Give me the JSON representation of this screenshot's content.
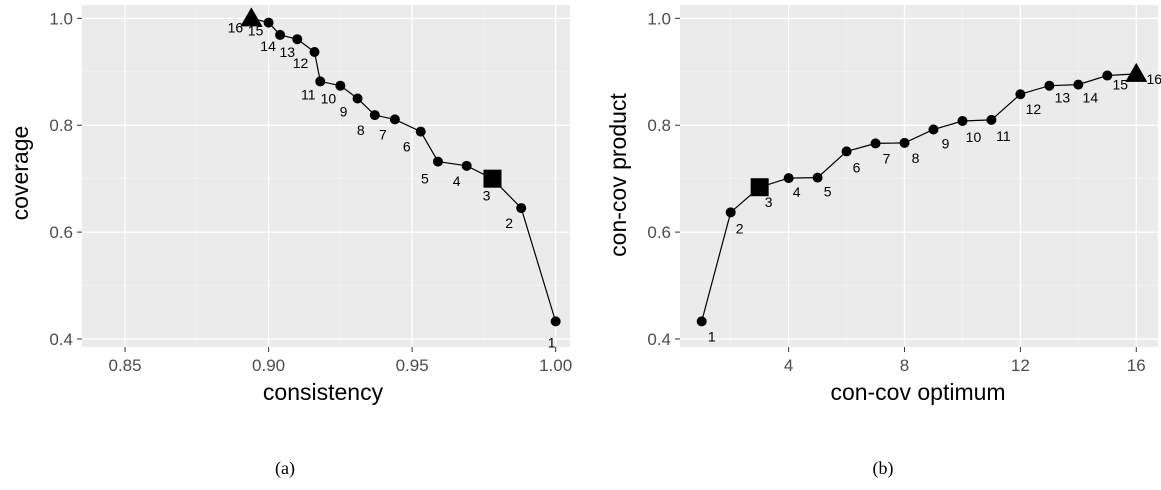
{
  "chart_data": [
    {
      "type": "line",
      "caption": "(a)",
      "xlabel": "consistency",
      "ylabel": "coverage",
      "xlim": [
        0.835,
        1.005
      ],
      "ylim": [
        0.385,
        1.025
      ],
      "xticks": [
        0.85,
        0.9,
        0.95,
        1.0
      ],
      "xtick_labels": [
        "0.85",
        "0.90",
        "0.95",
        "1.00"
      ],
      "yticks": [
        0.4,
        0.6,
        0.8,
        1.0
      ],
      "ytick_labels": [
        "0.4",
        "0.6",
        "0.8",
        "1.0"
      ],
      "grid": true,
      "points": [
        {
          "label": "1",
          "x": 1.0,
          "y": 0.433,
          "marker": "circle"
        },
        {
          "label": "2",
          "x": 0.988,
          "y": 0.645,
          "marker": "circle"
        },
        {
          "label": "3",
          "x": 0.978,
          "y": 0.7,
          "marker": "square"
        },
        {
          "label": "4",
          "x": 0.969,
          "y": 0.724,
          "marker": "circle"
        },
        {
          "label": "5",
          "x": 0.959,
          "y": 0.732,
          "marker": "circle"
        },
        {
          "label": "6",
          "x": 0.953,
          "y": 0.788,
          "marker": "circle"
        },
        {
          "label": "7",
          "x": 0.944,
          "y": 0.811,
          "marker": "circle"
        },
        {
          "label": "8",
          "x": 0.937,
          "y": 0.819,
          "marker": "circle"
        },
        {
          "label": "9",
          "x": 0.931,
          "y": 0.85,
          "marker": "circle"
        },
        {
          "label": "10",
          "x": 0.925,
          "y": 0.874,
          "marker": "circle"
        },
        {
          "label": "11",
          "x": 0.918,
          "y": 0.882,
          "marker": "circle"
        },
        {
          "label": "12",
          "x": 0.916,
          "y": 0.937,
          "marker": "circle"
        },
        {
          "label": "13",
          "x": 0.91,
          "y": 0.961,
          "marker": "circle"
        },
        {
          "label": "14",
          "x": 0.904,
          "y": 0.969,
          "marker": "circle"
        },
        {
          "label": "15",
          "x": 0.9,
          "y": 0.992,
          "marker": "circle"
        },
        {
          "label": "16",
          "x": 0.894,
          "y": 1.0,
          "marker": "triangle"
        }
      ]
    },
    {
      "type": "line",
      "caption": "(b)",
      "xlabel": "con-cov optimum",
      "ylabel": "con-cov product",
      "xlim": [
        0.25,
        16.75
      ],
      "ylim": [
        0.385,
        1.025
      ],
      "xticks": [
        4,
        8,
        12,
        16
      ],
      "xtick_labels": [
        "4",
        "8",
        "12",
        "16"
      ],
      "yticks": [
        0.4,
        0.6,
        0.8,
        1.0
      ],
      "ytick_labels": [
        "0.4",
        "0.6",
        "0.8",
        "1.0"
      ],
      "grid": true,
      "points": [
        {
          "label": "1",
          "x": 1,
          "y": 0.433,
          "marker": "circle"
        },
        {
          "label": "2",
          "x": 2,
          "y": 0.637,
          "marker": "circle"
        },
        {
          "label": "3",
          "x": 3,
          "y": 0.684,
          "marker": "square"
        },
        {
          "label": "4",
          "x": 4,
          "y": 0.701,
          "marker": "circle"
        },
        {
          "label": "5",
          "x": 5,
          "y": 0.702,
          "marker": "circle"
        },
        {
          "label": "6",
          "x": 6,
          "y": 0.751,
          "marker": "circle"
        },
        {
          "label": "7",
          "x": 7,
          "y": 0.766,
          "marker": "circle"
        },
        {
          "label": "8",
          "x": 8,
          "y": 0.767,
          "marker": "circle"
        },
        {
          "label": "9",
          "x": 9,
          "y": 0.792,
          "marker": "circle"
        },
        {
          "label": "10",
          "x": 10,
          "y": 0.808,
          "marker": "circle"
        },
        {
          "label": "11",
          "x": 11,
          "y": 0.81,
          "marker": "circle"
        },
        {
          "label": "12",
          "x": 12,
          "y": 0.858,
          "marker": "circle"
        },
        {
          "label": "13",
          "x": 13,
          "y": 0.874,
          "marker": "circle"
        },
        {
          "label": "14",
          "x": 14,
          "y": 0.876,
          "marker": "circle"
        },
        {
          "label": "15",
          "x": 15,
          "y": 0.893,
          "marker": "circle"
        },
        {
          "label": "16",
          "x": 16,
          "y": 0.896,
          "marker": "triangle"
        }
      ]
    }
  ]
}
